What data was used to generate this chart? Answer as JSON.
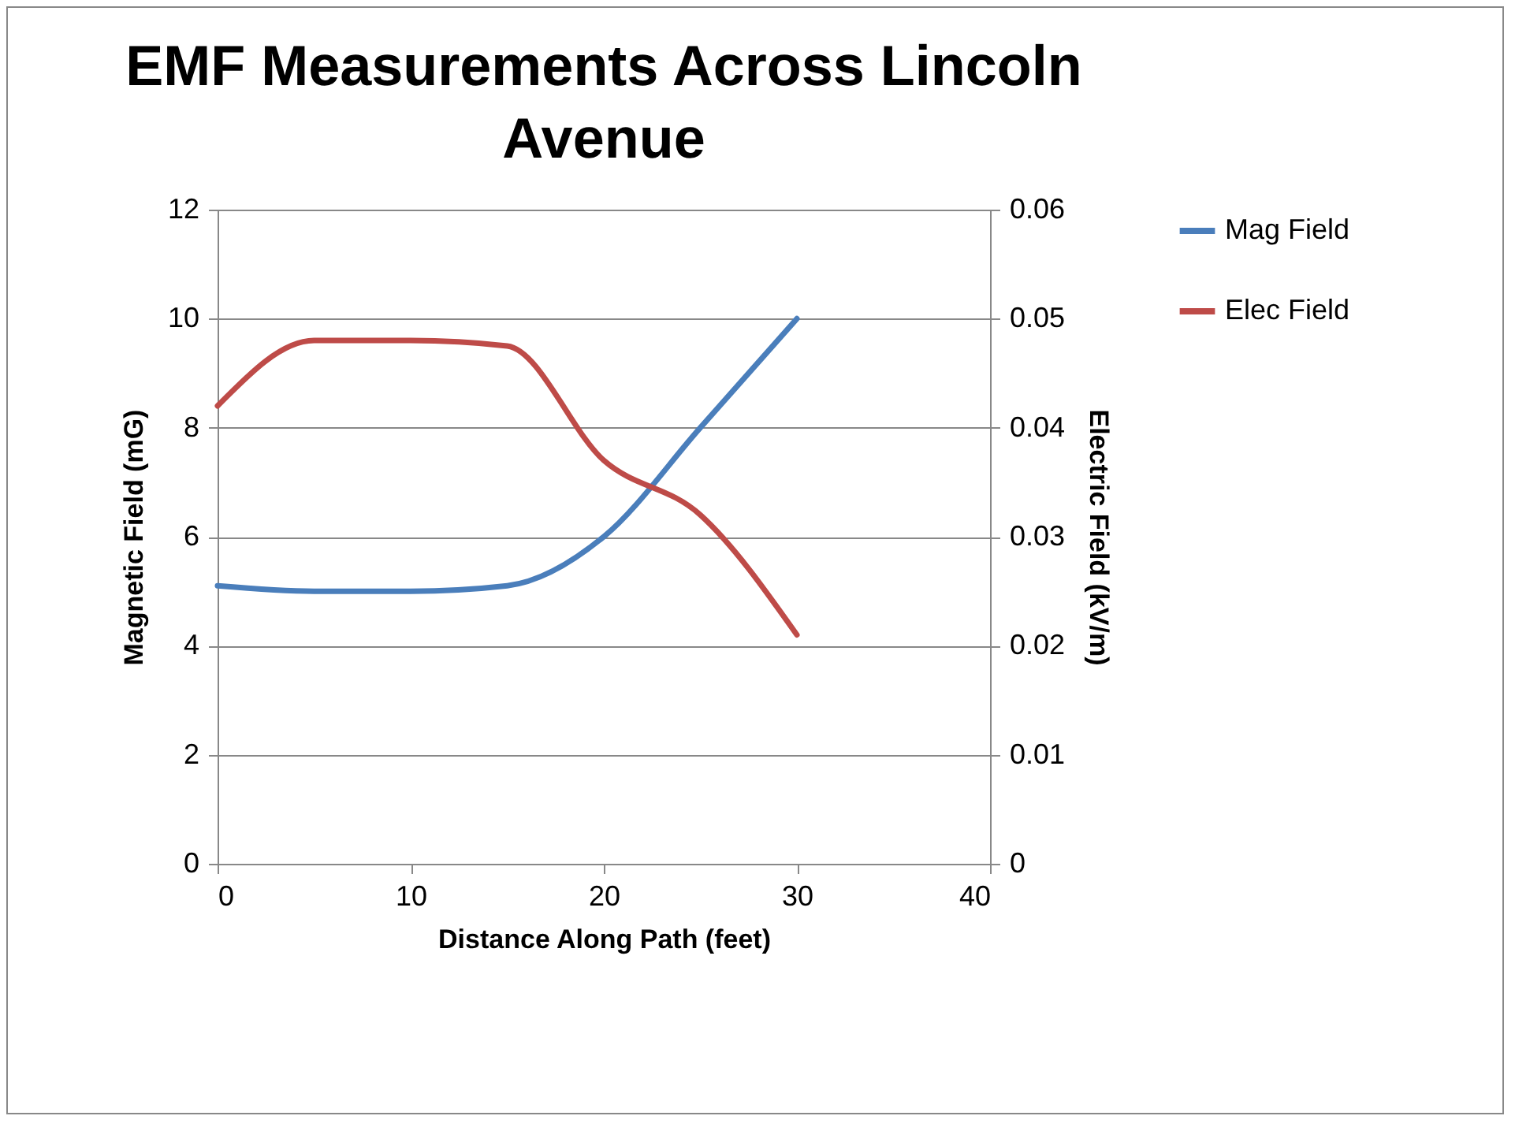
{
  "chart_data": {
    "type": "line",
    "title": "EMF Measurements Across Lincoln Avenue",
    "xlabel": "Distance Along Path (feet)",
    "ylabel": "Magnetic Field (mG)",
    "y2label": "Electric Field (kV/m)",
    "x": [
      0,
      5,
      10,
      15,
      20,
      25,
      30
    ],
    "series": [
      {
        "name": "Mag Field",
        "color": "#4a7ebb",
        "values": [
          5.1,
          5.0,
          5.0,
          5.1,
          6.0,
          8.0,
          10.0
        ]
      },
      {
        "name": "Elec Field",
        "color": "#be4b48",
        "axis": "y2",
        "values": [
          0.042,
          0.048,
          0.048,
          0.0475,
          0.037,
          0.032,
          0.021
        ]
      }
    ],
    "xlim": [
      0,
      40
    ],
    "xticks": [
      0,
      10,
      20,
      30,
      40
    ],
    "ylim": [
      0,
      12
    ],
    "yticks": [
      0,
      2,
      4,
      6,
      8,
      10,
      12
    ],
    "y2lim": [
      0,
      0.06
    ],
    "y2ticks": [
      0,
      0.01,
      0.02,
      0.03,
      0.04,
      0.05,
      0.06
    ],
    "grid": "y",
    "legend": "right",
    "marker": "none",
    "line_style": "solid"
  }
}
